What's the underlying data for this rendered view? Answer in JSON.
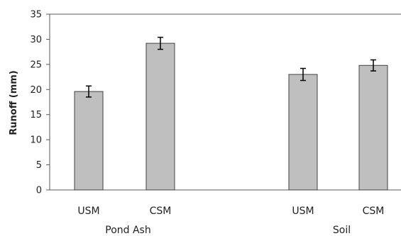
{
  "chart_data": {
    "type": "bar",
    "ylabel": "Runoff (mm)",
    "xlabel": "",
    "ylim": [
      0,
      35
    ],
    "y_ticks": [
      0,
      5,
      10,
      15,
      20,
      25,
      30,
      35
    ],
    "grid": false,
    "categories": [
      "USM",
      "CSM",
      "USM",
      "CSM"
    ],
    "groups": [
      {
        "label": "Pond Ash",
        "categories": [
          "USM",
          "CSM"
        ]
      },
      {
        "label": "Soil",
        "categories": [
          "USM",
          "CSM"
        ]
      }
    ],
    "values": [
      19.6,
      29.2,
      23.0,
      24.8
    ],
    "error": [
      1.1,
      1.2,
      1.2,
      1.1
    ],
    "bar_color": "#bfbfbf",
    "bar_edge_color": "#404040"
  }
}
